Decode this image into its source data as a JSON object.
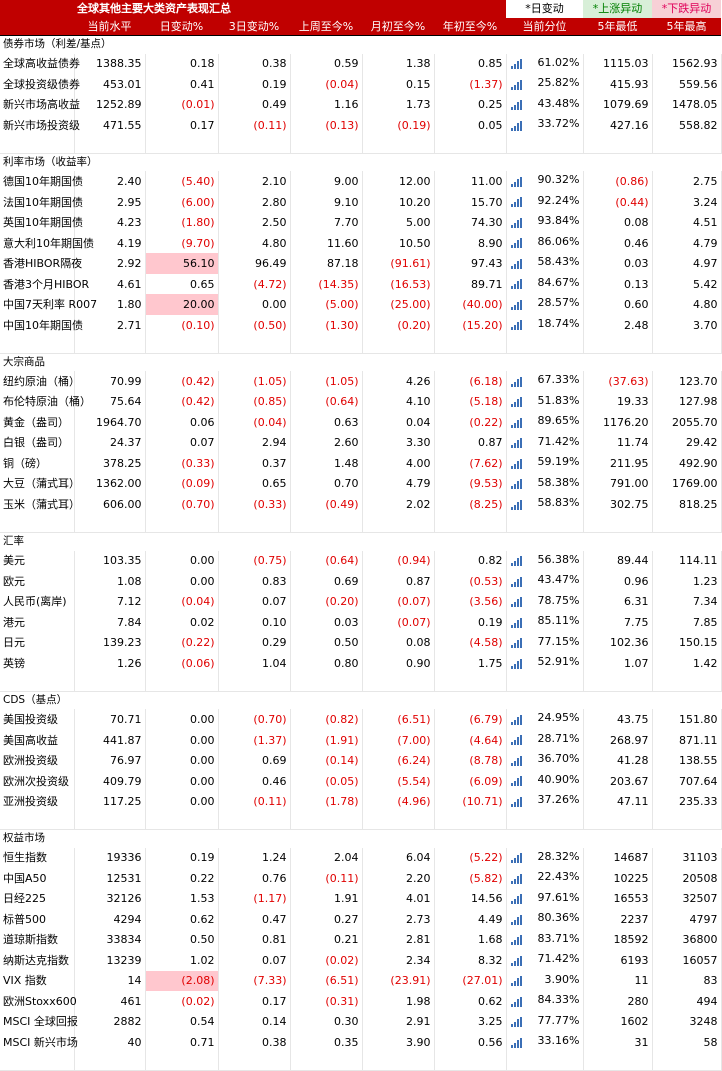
{
  "title": "全球其他主要大类资产表现汇总",
  "legend": {
    "daily": "*日变动",
    "up": "*上涨异动",
    "down": "*下跌异动"
  },
  "colors": {
    "header_bg": "#c00000",
    "up_bg": "#d8efd8",
    "up_text": "#008000",
    "down_bg": "#f7d0d6",
    "down_text": "#e0005a",
    "negative": "#e00000",
    "highlight": "#ffc7ce",
    "percentile_icon": "#3b6fb6"
  },
  "headers": [
    "",
    "当前水平",
    "日变动%",
    "3日变动%",
    "上周至今%",
    "月初至今%",
    "年初至今%",
    "当前分位",
    "5年最低",
    "5年最高"
  ],
  "sections": [
    {
      "title": "债券市场（利差/基点）",
      "rows": [
        {
          "name": "全球高收益债券",
          "values": [
            "1388.35",
            "0.18",
            "0.38",
            "0.59",
            "1.38",
            "0.85"
          ],
          "pct": "61.02%",
          "low": "1115.03",
          "high": "1562.93"
        },
        {
          "name": "全球投资级债券",
          "values": [
            "453.01",
            "0.41",
            "0.19",
            "(0.04)",
            "0.15",
            "(1.37)"
          ],
          "pct": "25.82%",
          "low": "415.93",
          "high": "559.56"
        },
        {
          "name": "新兴市场高收益",
          "values": [
            "1252.89",
            "(0.01)",
            "0.49",
            "1.16",
            "1.73",
            "0.25"
          ],
          "pct": "43.48%",
          "low": "1079.69",
          "high": "1478.05"
        },
        {
          "name": "新兴市场投资级",
          "values": [
            "471.55",
            "0.17",
            "(0.11)",
            "(0.13)",
            "(0.19)",
            "0.05"
          ],
          "pct": "33.72%",
          "low": "427.16",
          "high": "558.82"
        }
      ]
    },
    {
      "title": "利率市场（收益率）",
      "rows": [
        {
          "name": "德国10年期国债",
          "values": [
            "2.40",
            "(5.40)",
            "2.10",
            "9.00",
            "12.00",
            "11.00"
          ],
          "pct": "90.32%",
          "low": "(0.86)",
          "high": "2.75"
        },
        {
          "name": "法国10年期国债",
          "values": [
            "2.95",
            "(6.00)",
            "2.80",
            "9.10",
            "10.20",
            "15.70"
          ],
          "pct": "92.24%",
          "low": "(0.44)",
          "high": "3.24"
        },
        {
          "name": "英国10年期国债",
          "values": [
            "4.23",
            "(1.80)",
            "2.50",
            "7.70",
            "5.00",
            "74.30"
          ],
          "pct": "93.84%",
          "low": "0.08",
          "high": "4.51"
        },
        {
          "name": "意大利10年期国债",
          "values": [
            "4.19",
            "(9.70)",
            "4.80",
            "11.60",
            "10.50",
            "8.90"
          ],
          "pct": "86.06%",
          "low": "0.46",
          "high": "4.79"
        },
        {
          "name": "香港HIBOR隔夜",
          "values": [
            "2.92",
            "56.10",
            "96.49",
            "87.18",
            "(91.61)",
            "97.43"
          ],
          "pct": "58.43%",
          "low": "0.03",
          "high": "4.97",
          "hl": [
            1
          ]
        },
        {
          "name": "香港3个月HIBOR",
          "values": [
            "4.61",
            "0.65",
            "(4.72)",
            "(14.35)",
            "(16.53)",
            "89.71"
          ],
          "pct": "84.67%",
          "low": "0.13",
          "high": "5.42"
        },
        {
          "name": "中国7天利率 R007",
          "values": [
            "1.80",
            "20.00",
            "0.00",
            "(5.00)",
            "(25.00)",
            "(40.00)"
          ],
          "pct": "28.57%",
          "low": "0.60",
          "high": "4.80",
          "hl": [
            1
          ]
        },
        {
          "name": "中国10年期国债",
          "values": [
            "2.71",
            "(0.10)",
            "(0.50)",
            "(1.30)",
            "(0.20)",
            "(15.20)"
          ],
          "pct": "18.74%",
          "low": "2.48",
          "high": "3.70"
        }
      ]
    },
    {
      "title": "大宗商品",
      "rows": [
        {
          "name": "纽约原油（桶）",
          "values": [
            "70.99",
            "(0.42)",
            "(1.05)",
            "(1.05)",
            "4.26",
            "(6.18)"
          ],
          "pct": "67.33%",
          "low": "(37.63)",
          "high": "123.70"
        },
        {
          "name": "布伦特原油（桶）",
          "values": [
            "75.64",
            "(0.42)",
            "(0.85)",
            "(0.64)",
            "4.10",
            "(5.18)"
          ],
          "pct": "51.83%",
          "low": "19.33",
          "high": "127.98"
        },
        {
          "name": "黄金（盎司）",
          "values": [
            "1964.70",
            "0.06",
            "(0.04)",
            "0.63",
            "0.04",
            "(0.22)"
          ],
          "pct": "89.65%",
          "low": "1176.20",
          "high": "2055.70"
        },
        {
          "name": "白银（盎司）",
          "values": [
            "24.37",
            "0.07",
            "2.94",
            "2.60",
            "3.30",
            "0.87"
          ],
          "pct": "71.42%",
          "low": "11.74",
          "high": "29.42"
        },
        {
          "name": "铜（磅）",
          "values": [
            "378.25",
            "(0.33)",
            "0.37",
            "1.48",
            "4.00",
            "(7.62)"
          ],
          "pct": "59.19%",
          "low": "211.95",
          "high": "492.90"
        },
        {
          "name": "大豆（蒲式耳）",
          "values": [
            "1362.00",
            "(0.09)",
            "0.65",
            "0.70",
            "4.79",
            "(9.53)"
          ],
          "pct": "58.38%",
          "low": "791.00",
          "high": "1769.00"
        },
        {
          "name": "玉米（蒲式耳）",
          "values": [
            "606.00",
            "(0.70)",
            "(0.33)",
            "(0.49)",
            "2.02",
            "(8.25)"
          ],
          "pct": "58.83%",
          "low": "302.75",
          "high": "818.25"
        }
      ]
    },
    {
      "title": "汇率",
      "rows": [
        {
          "name": "美元",
          "values": [
            "103.35",
            "0.00",
            "(0.75)",
            "(0.64)",
            "(0.94)",
            "0.82"
          ],
          "pct": "56.38%",
          "low": "89.44",
          "high": "114.11"
        },
        {
          "name": "欧元",
          "values": [
            "1.08",
            "0.00",
            "0.83",
            "0.69",
            "0.87",
            "(0.53)"
          ],
          "pct": "43.47%",
          "low": "0.96",
          "high": "1.23"
        },
        {
          "name": "人民币(离岸)",
          "values": [
            "7.12",
            "(0.04)",
            "0.07",
            "(0.20)",
            "(0.07)",
            "(3.56)"
          ],
          "pct": "78.75%",
          "low": "6.31",
          "high": "7.34"
        },
        {
          "name": "港元",
          "values": [
            "7.84",
            "0.02",
            "0.10",
            "0.03",
            "(0.07)",
            "0.19"
          ],
          "pct": "85.11%",
          "low": "7.75",
          "high": "7.85"
        },
        {
          "name": "日元",
          "values": [
            "139.23",
            "(0.22)",
            "0.29",
            "0.50",
            "0.08",
            "(4.58)"
          ],
          "pct": "77.15%",
          "low": "102.36",
          "high": "150.15"
        },
        {
          "name": "英镑",
          "values": [
            "1.26",
            "(0.06)",
            "1.04",
            "0.80",
            "0.90",
            "1.75"
          ],
          "pct": "52.91%",
          "low": "1.07",
          "high": "1.42"
        }
      ]
    },
    {
      "title": "CDS（基点）",
      "rows": [
        {
          "name": "美国投资级",
          "values": [
            "70.71",
            "0.00",
            "(0.70)",
            "(0.82)",
            "(6.51)",
            "(6.79)"
          ],
          "pct": "24.95%",
          "low": "43.75",
          "high": "151.80"
        },
        {
          "name": "美国高收益",
          "values": [
            "441.87",
            "0.00",
            "(1.37)",
            "(1.91)",
            "(7.00)",
            "(4.64)"
          ],
          "pct": "28.71%",
          "low": "268.97",
          "high": "871.11"
        },
        {
          "name": "欧洲投资级",
          "values": [
            "76.97",
            "0.00",
            "0.69",
            "(0.14)",
            "(6.24)",
            "(8.78)"
          ],
          "pct": "36.70%",
          "low": "41.28",
          "high": "138.55"
        },
        {
          "name": "欧洲次投资级",
          "values": [
            "409.79",
            "0.00",
            "0.46",
            "(0.05)",
            "(5.54)",
            "(6.09)"
          ],
          "pct": "40.90%",
          "low": "203.67",
          "high": "707.64"
        },
        {
          "name": "亚洲投资级",
          "values": [
            "117.25",
            "0.00",
            "(0.11)",
            "(1.78)",
            "(4.96)",
            "(10.71)"
          ],
          "pct": "37.26%",
          "low": "47.11",
          "high": "235.33"
        }
      ]
    },
    {
      "title": "权益市场",
      "rows": [
        {
          "name": "恒生指数",
          "values": [
            "19336",
            "0.19",
            "1.24",
            "2.04",
            "6.04",
            "(5.22)"
          ],
          "pct": "28.32%",
          "low": "14687",
          "high": "31103"
        },
        {
          "name": "中国A50",
          "values": [
            "12531",
            "0.22",
            "0.76",
            "(0.11)",
            "2.20",
            "(5.82)"
          ],
          "pct": "22.43%",
          "low": "10225",
          "high": "20508"
        },
        {
          "name": "日经225",
          "values": [
            "32126",
            "1.53",
            "(1.17)",
            "1.91",
            "4.01",
            "14.56"
          ],
          "pct": "97.61%",
          "low": "16553",
          "high": "32507"
        },
        {
          "name": "标普500",
          "values": [
            "4294",
            "0.62",
            "0.47",
            "0.27",
            "2.73",
            "4.49"
          ],
          "pct": "80.36%",
          "low": "2237",
          "high": "4797"
        },
        {
          "name": "道琼斯指数",
          "values": [
            "33834",
            "0.50",
            "0.81",
            "0.21",
            "2.81",
            "1.68"
          ],
          "pct": "83.71%",
          "low": "18592",
          "high": "36800"
        },
        {
          "name": "纳斯达克指数",
          "values": [
            "13239",
            "1.02",
            "0.07",
            "(0.02)",
            "2.34",
            "8.32"
          ],
          "pct": "71.42%",
          "low": "6193",
          "high": "16057"
        },
        {
          "name": "VIX 指数",
          "values": [
            "14",
            "(2.08)",
            "(7.33)",
            "(6.51)",
            "(23.91)",
            "(27.01)"
          ],
          "pct": "3.90%",
          "low": "11",
          "high": "83",
          "hl": [
            1
          ]
        },
        {
          "name": "欧洲Stoxx600",
          "values": [
            "461",
            "(0.02)",
            "0.17",
            "(0.31)",
            "1.98",
            "0.62"
          ],
          "pct": "84.33%",
          "low": "280",
          "high": "494"
        },
        {
          "name": "MSCI 全球回报",
          "values": [
            "2882",
            "0.54",
            "0.14",
            "0.30",
            "2.91",
            "3.25"
          ],
          "pct": "77.77%",
          "low": "1602",
          "high": "3248"
        },
        {
          "name": "MSCI 新兴市场",
          "values": [
            "40",
            "0.71",
            "0.38",
            "0.35",
            "3.90",
            "0.56"
          ],
          "pct": "33.16%",
          "low": "31",
          "high": "58"
        }
      ]
    }
  ]
}
